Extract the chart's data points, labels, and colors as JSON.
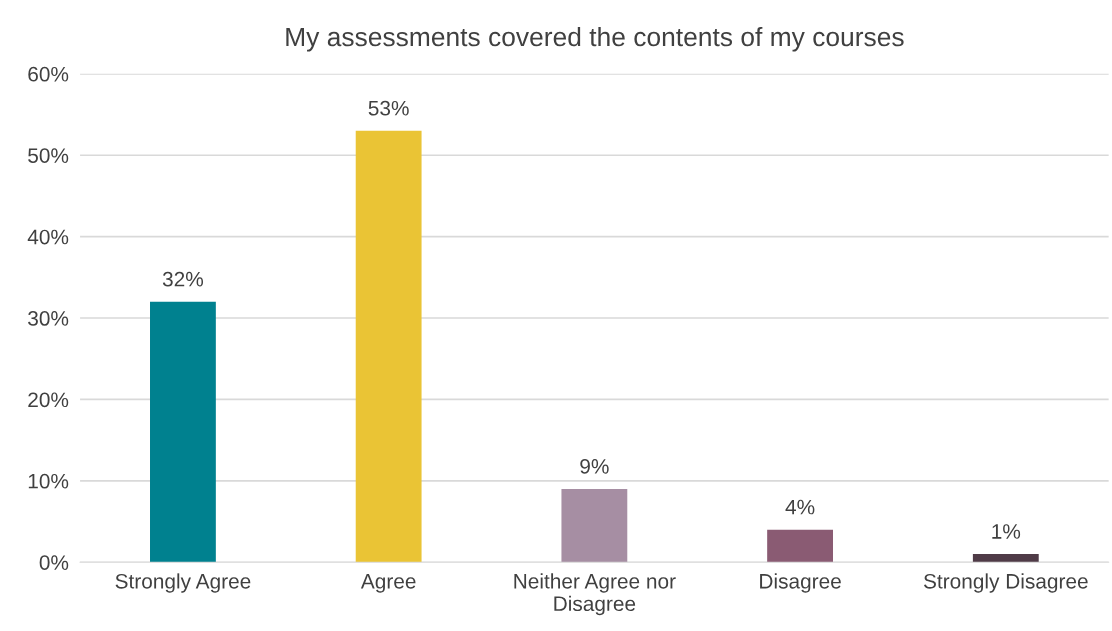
{
  "chart_data": {
    "type": "bar",
    "title": "My assessments covered the contents of my courses",
    "categories": [
      "Strongly Agree",
      "Agree",
      "Neither Agree nor\nDisagree",
      "Disagree",
      "Strongly Disagree"
    ],
    "values": [
      32,
      53,
      9,
      4,
      1
    ],
    "value_labels": [
      "32%",
      "53%",
      "9%",
      "4%",
      "1%"
    ],
    "colors": [
      "#00818f",
      "#eac435",
      "#a68ea3",
      "#8a5b73",
      "#4f3b47"
    ],
    "ylim": [
      0,
      60
    ],
    "yticks": [
      {
        "value": 0,
        "label": "0%"
      },
      {
        "value": 10,
        "label": "10%"
      },
      {
        "value": 20,
        "label": "20%"
      },
      {
        "value": 30,
        "label": "30%"
      },
      {
        "value": 40,
        "label": "40%"
      },
      {
        "value": 50,
        "label": "50%"
      },
      {
        "value": 60,
        "label": "60%"
      }
    ],
    "grid": "y",
    "legend": false
  }
}
